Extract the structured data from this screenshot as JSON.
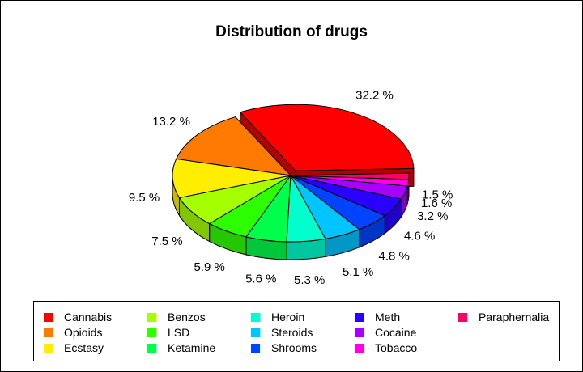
{
  "chart_data": {
    "type": "pie",
    "title": "Distribution of drugs",
    "three_d": true,
    "exploded_slice": "Cannabis",
    "label_suffix": " %",
    "legend_position": "bottom",
    "slices": [
      {
        "name": "Cannabis",
        "value": 32.2,
        "label": "32.2",
        "color": "#FF0000"
      },
      {
        "name": "Opioids",
        "value": 13.2,
        "label": "13.2",
        "color": "#FF7A00"
      },
      {
        "name": "Ecstasy",
        "value": 9.5,
        "label": "9.5",
        "color": "#FFEE00"
      },
      {
        "name": "Benzos",
        "value": 7.5,
        "label": "7.5",
        "color": "#A6FF00"
      },
      {
        "name": "LSD",
        "value": 5.9,
        "label": "5.9",
        "color": "#2EFF00"
      },
      {
        "name": "Ketamine",
        "value": 5.6,
        "label": "5.6",
        "color": "#00FF4A"
      },
      {
        "name": "Heroin",
        "value": 5.3,
        "label": "5.3",
        "color": "#00FFCC"
      },
      {
        "name": "Steroids",
        "value": 5.1,
        "label": "5.1",
        "color": "#00C4FF"
      },
      {
        "name": "Shrooms",
        "value": 4.8,
        "label": "4.8",
        "color": "#0044FF"
      },
      {
        "name": "Meth",
        "value": 4.6,
        "label": "4.6",
        "color": "#2A00FF"
      },
      {
        "name": "Cocaine",
        "value": 3.2,
        "label": "3.2",
        "color": "#A800FF"
      },
      {
        "name": "Tobacco",
        "value": 1.6,
        "label": "1.6",
        "color": "#FF00E6"
      },
      {
        "name": "Paraphernalia",
        "value": 1.5,
        "label": "1.5",
        "color": "#FF0066"
      }
    ]
  }
}
